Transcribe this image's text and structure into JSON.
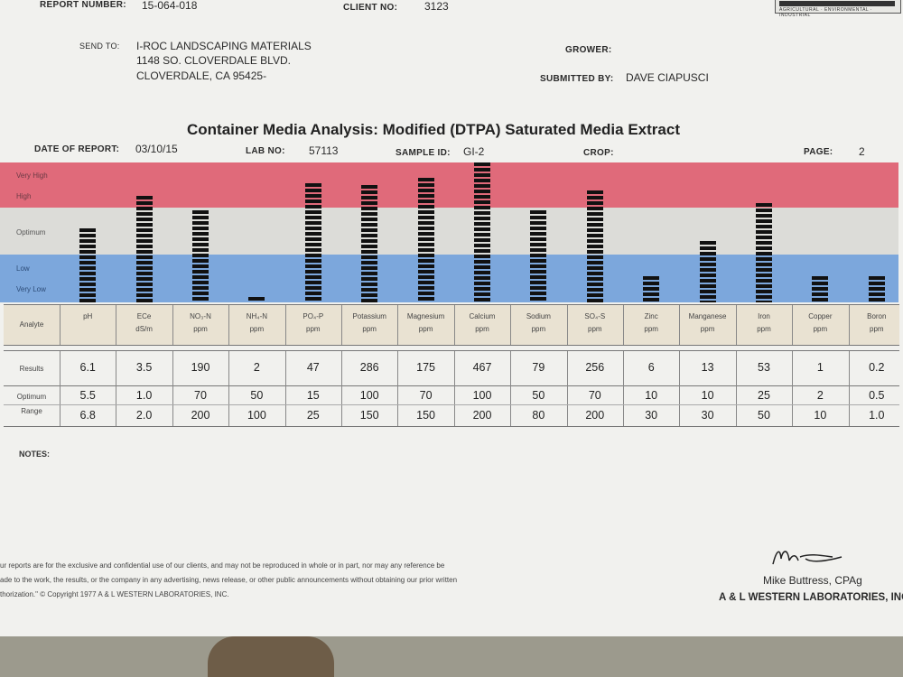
{
  "header": {
    "report_number_label": "REPORT NUMBER:",
    "report_number": "15-064-018",
    "client_no_label": "CLIENT NO:",
    "client_no": "3123",
    "send_to_label": "SEND TO:",
    "send_to": {
      "name": "I-ROC LANDSCAPING MATERIALS",
      "street": "1148 SO. CLOVERDALE BLVD.",
      "city": "CLOVERDALE, CA 95425-"
    },
    "grower_label": "GROWER:",
    "submitted_by_label": "SUBMITTED BY:",
    "submitted_by": "DAVE CIAPUSCI"
  },
  "title": "Container Media Analysis: Modified (DTPA) Saturated Media Extract",
  "info": {
    "date_label": "DATE OF REPORT:",
    "date": "03/10/15",
    "lab_no_label": "LAB NO:",
    "lab_no": "57113",
    "sample_id_label": "SAMPLE ID:",
    "sample_id": "GI-2",
    "crop_label": "CROP:",
    "page_label": "PAGE:",
    "page": "2"
  },
  "chart_data": {
    "type": "bar",
    "bands": [
      "Very High",
      "High",
      "Optimum",
      "Low",
      "Very Low"
    ],
    "row_labels": {
      "analyte": "Analyte",
      "results": "Results",
      "optimum": "Optimum",
      "range": "Range"
    },
    "analytes": [
      {
        "name": "pH",
        "unit": "",
        "result": "6.1",
        "opt_low": "5.5",
        "opt_high": "6.8",
        "level": 0.53
      },
      {
        "name": "ECe",
        "unit": "dS/m",
        "result": "3.5",
        "opt_low": "1.0",
        "opt_high": "2.0",
        "level": 0.76
      },
      {
        "name": "NO₃-N",
        "unit": "ppm",
        "result": "190",
        "opt_low": "70",
        "opt_high": "200",
        "level": 0.66
      },
      {
        "name": "NH₄-N",
        "unit": "ppm",
        "result": "2",
        "opt_low": "50",
        "opt_high": "100",
        "level": 0.04
      },
      {
        "name": "PO₄-P",
        "unit": "ppm",
        "result": "47",
        "opt_low": "15",
        "opt_high": "25",
        "level": 0.85
      },
      {
        "name": "Potassium",
        "unit": "ppm",
        "result": "286",
        "opt_low": "100",
        "opt_high": "150",
        "level": 0.84
      },
      {
        "name": "Magnesium",
        "unit": "ppm",
        "result": "175",
        "opt_low": "70",
        "opt_high": "150",
        "level": 0.89
      },
      {
        "name": "Calcium",
        "unit": "ppm",
        "result": "467",
        "opt_low": "100",
        "opt_high": "200",
        "level": 1.0
      },
      {
        "name": "Sodium",
        "unit": "ppm",
        "result": "79",
        "opt_low": "50",
        "opt_high": "80",
        "level": 0.66
      },
      {
        "name": "SO₄-S",
        "unit": "ppm",
        "result": "256",
        "opt_low": "70",
        "opt_high": "200",
        "level": 0.8
      },
      {
        "name": "Zinc",
        "unit": "ppm",
        "result": "6",
        "opt_low": "10",
        "opt_high": "30",
        "level": 0.19
      },
      {
        "name": "Manganese",
        "unit": "ppm",
        "result": "13",
        "opt_low": "10",
        "opt_high": "30",
        "level": 0.44
      },
      {
        "name": "Iron",
        "unit": "ppm",
        "result": "53",
        "opt_low": "25",
        "opt_high": "50",
        "level": 0.71
      },
      {
        "name": "Copper",
        "unit": "ppm",
        "result": "1",
        "opt_low": "2",
        "opt_high": "10",
        "level": 0.19
      },
      {
        "name": "Boron",
        "unit": "ppm",
        "result": "0.2",
        "opt_low": "0.5",
        "opt_high": "1.0",
        "level": 0.19
      }
    ]
  },
  "notes_label": "NOTES:",
  "footer": {
    "disclaimer": [
      "ur reports are for the exclusive and confidential use of our clients, and may not be reproduced in whole or in part, nor may any reference be",
      "ade to the work, the results, or the company in any advertising, news release, or other public announcements without obtaining our prior written",
      "thorization.\" © Copyright 1977 A & L WESTERN LABORATORIES, INC."
    ],
    "signer": "Mike Buttress, CPAg",
    "lab": "A & L WESTERN LABORATORIES, INC"
  }
}
